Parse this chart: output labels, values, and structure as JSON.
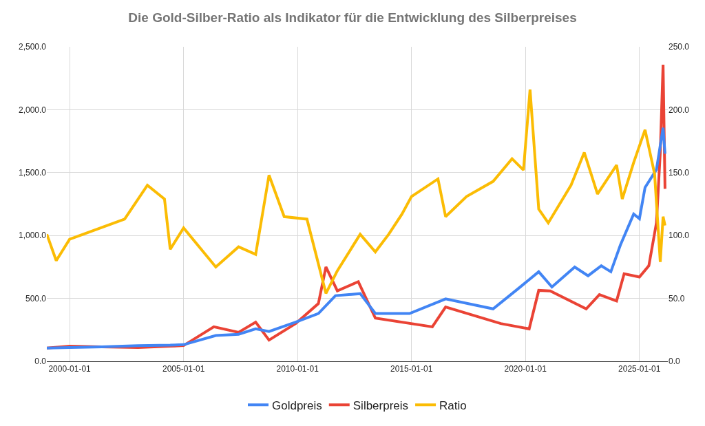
{
  "chart_data": {
    "type": "line",
    "title": "Die Gold-Silber-Ratio als Indikator für die Entwicklung des Silberpreises",
    "xlim": [
      "1999-01-01",
      "2026-04-01"
    ],
    "xticks": [
      {
        "value": "2000-01-01",
        "label": "2000-01-01"
      },
      {
        "value": "2005-01-01",
        "label": "2005-01-01"
      },
      {
        "value": "2010-01-01",
        "label": "2010-01-01"
      },
      {
        "value": "2015-01-01",
        "label": "2015-01-01"
      },
      {
        "value": "2020-01-01",
        "label": "2020-01-01"
      },
      {
        "value": "2025-01-01",
        "label": "2025-01-01"
      }
    ],
    "ylim": [
      0,
      2500
    ],
    "yticks": [
      {
        "value": 0,
        "label": "0.0"
      },
      {
        "value": 500,
        "label": "500.0"
      },
      {
        "value": 1000,
        "label": "1,000.0"
      },
      {
        "value": 1500,
        "label": "1,500.0"
      },
      {
        "value": 2000,
        "label": "2,000.0"
      },
      {
        "value": 2500,
        "label": "2,500.0"
      }
    ],
    "y2lim": [
      0,
      250
    ],
    "y2ticks": [
      {
        "value": 0,
        "label": "0.0"
      },
      {
        "value": 50,
        "label": "50.0"
      },
      {
        "value": 100,
        "label": "100.0"
      },
      {
        "value": 150,
        "label": "150.0"
      },
      {
        "value": 200,
        "label": "200.0"
      },
      {
        "value": 250,
        "label": "250.0"
      }
    ],
    "grid": true,
    "legend": "bottom",
    "marker": "none",
    "line_style": "solid",
    "series": [
      {
        "name": "Goldpreis",
        "color": "#4285f4",
        "x": [
          "1999-01-01",
          "2000-01-01",
          "2001-06-01",
          "2003-01-01",
          "2004-06-01",
          "2005-01-01",
          "2006-06-01",
          "2007-06-01",
          "2008-03-01",
          "2008-10-01",
          "2009-12-01",
          "2010-12-01",
          "2011-09-01",
          "2012-10-01",
          "2013-06-01",
          "2014-12-01",
          "2016-07-01",
          "2018-08-01",
          "2019-09-01",
          "2020-08-01",
          "2021-03-01",
          "2022-03-01",
          "2022-10-01",
          "2023-05-01",
          "2023-10-01",
          "2024-03-01",
          "2024-10-01",
          "2025-01-01",
          "2025-04-01",
          "2025-10-01",
          "2026-01-15",
          "2026-02-15"
        ],
        "values": [
          105,
          110,
          115,
          125,
          128,
          132,
          205,
          215,
          258,
          237,
          311,
          380,
          522,
          538,
          380,
          380,
          496,
          417,
          575,
          712,
          591,
          749,
          680,
          759,
          712,
          923,
          1171,
          1134,
          1382,
          1524,
          1857,
          1650
        ]
      },
      {
        "name": "Silberpreis",
        "color": "#ea4335",
        "x": [
          "1999-01-01",
          "2000-01-01",
          "2001-06-01",
          "2003-01-01",
          "2004-06-01",
          "2005-01-01",
          "2006-05-01",
          "2007-06-01",
          "2008-03-01",
          "2008-10-01",
          "2009-12-01",
          "2010-12-01",
          "2011-04-01",
          "2011-10-01",
          "2012-09-01",
          "2013-06-01",
          "2015-12-01",
          "2016-07-01",
          "2018-12-01",
          "2020-03-01",
          "2020-08-01",
          "2021-02-01",
          "2022-09-01",
          "2023-04-01",
          "2024-01-01",
          "2024-05-01",
          "2025-01-01",
          "2025-06-01",
          "2025-10-01",
          "2025-12-01",
          "2026-01-15",
          "2026-02-15"
        ],
        "values": [
          105,
          120,
          115,
          110,
          120,
          125,
          274,
          230,
          311,
          169,
          300,
          459,
          750,
          560,
          633,
          343,
          274,
          432,
          300,
          258,
          564,
          560,
          417,
          530,
          480,
          696,
          670,
          760,
          1102,
          1661,
          2357,
          1371
        ]
      },
      {
        "name": "Ratio",
        "color": "#fbbc04",
        "x": [
          "1999-01-01",
          "1999-06-01",
          "2000-01-01",
          "2002-06-01",
          "2003-06-01",
          "2004-03-01",
          "2004-06-01",
          "2005-01-01",
          "2006-06-01",
          "2007-06-01",
          "2008-03-01",
          "2008-10-01",
          "2009-06-01",
          "2010-06-01",
          "2011-04-01",
          "2011-10-01",
          "2012-10-01",
          "2013-06-01",
          "2014-01-01",
          "2014-08-01",
          "2015-01-01",
          "2016-03-01",
          "2016-07-01",
          "2017-06-01",
          "2018-08-01",
          "2019-06-01",
          "2019-12-01",
          "2020-03-15",
          "2020-08-01",
          "2021-01-01",
          "2022-01-01",
          "2022-08-01",
          "2023-03-01",
          "2024-01-01",
          "2024-04-01",
          "2024-10-01",
          "2025-04-01",
          "2025-09-01",
          "2025-12-01",
          "2026-01-15",
          "2026-02-15"
        ],
        "values": [
          101,
          80,
          97,
          113,
          140,
          129,
          89,
          106,
          75,
          91,
          85,
          148,
          115,
          113,
          54,
          72,
          101,
          87,
          101,
          117,
          131,
          145,
          115,
          131,
          143,
          161,
          152,
          216,
          121,
          110,
          140,
          166,
          133,
          156,
          129,
          158,
          184,
          149,
          79,
          115,
          108
        ],
        "axis": "y2"
      }
    ]
  }
}
